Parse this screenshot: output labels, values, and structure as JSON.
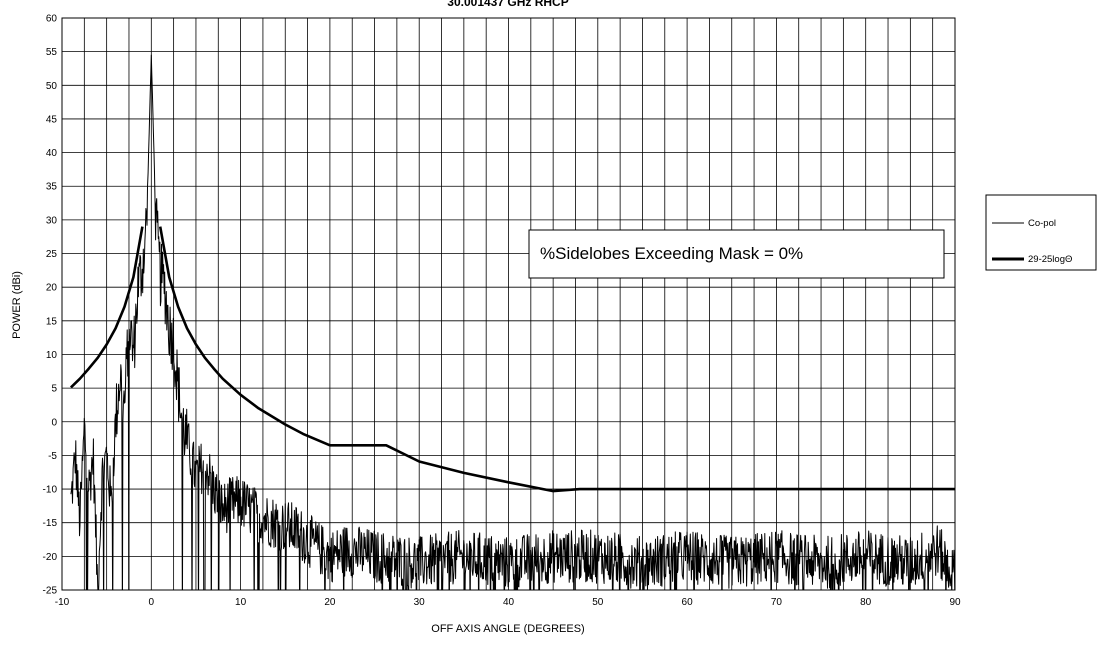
{
  "chart_data": {
    "type": "line",
    "title": "30.001437 GHz RHCP",
    "xlabel": "OFF AXIS ANGLE (DEGREES)",
    "ylabel": "POWER (dBi)",
    "xlim": [
      -10,
      90
    ],
    "ylim": [
      -25,
      60
    ],
    "xticks": [
      -10,
      0,
      10,
      20,
      30,
      40,
      50,
      60,
      70,
      80,
      90
    ],
    "yticks": [
      -25,
      -20,
      -15,
      -10,
      -5,
      0,
      5,
      10,
      15,
      20,
      25,
      30,
      35,
      40,
      45,
      50,
      55,
      60
    ],
    "x_gridlines_every": 2.5,
    "grid": true,
    "legend": "right",
    "annotation": "%Sidelobes Exceeding Mask = 0%",
    "series": [
      {
        "name": "Co-pol",
        "x": [
          -9,
          -8.5,
          -8,
          -7.5,
          -7,
          -6.5,
          -6,
          -5.5,
          -5,
          -4.5,
          -4,
          -3.5,
          -3,
          -2.5,
          -2,
          -1.5,
          -1,
          -0.5,
          -0.2,
          0,
          0.2,
          0.5,
          1,
          1.5,
          2,
          2.5,
          3,
          3.5,
          4,
          5,
          6,
          7,
          8,
          9,
          10,
          12,
          14,
          16,
          18,
          20,
          22,
          25,
          30,
          35,
          40,
          45,
          50,
          55,
          60,
          65,
          70,
          75,
          80,
          85,
          88,
          90
        ],
        "y": [
          -12,
          -5,
          -15,
          -1,
          -10,
          -5,
          -25,
          -8,
          -5,
          -12,
          0,
          7,
          2,
          15,
          10,
          20,
          23,
          30,
          45,
          54.5,
          45,
          30,
          22,
          20,
          14,
          12,
          5,
          0,
          -3,
          -8,
          -6,
          -10,
          -13,
          -12,
          -12,
          -14,
          -15,
          -16,
          -18,
          -20,
          -19,
          -20,
          -21,
          -20,
          -21,
          -20,
          -20,
          -21,
          -20,
          -21,
          -20,
          -21,
          -20,
          -21,
          -19,
          -23
        ]
      },
      {
        "name": "29-25logΘ",
        "x": [
          -9,
          -8,
          -7,
          -6,
          -5,
          -4,
          -3,
          -2,
          -1,
          1,
          2,
          3,
          4,
          5,
          6,
          7,
          8,
          10,
          12,
          15,
          17,
          20,
          26.3,
          30,
          35,
          40,
          45,
          48,
          60,
          70,
          80,
          90
        ],
        "y": [
          5.1,
          6.4,
          7.9,
          9.5,
          11.5,
          13.9,
          17.1,
          21.5,
          29,
          29,
          21.5,
          17.1,
          13.9,
          11.5,
          9.5,
          7.9,
          6.4,
          4,
          2,
          -0.4,
          -1.8,
          -3.5,
          -3.5,
          -5.9,
          -7.6,
          -9,
          -10.3,
          -10,
          -10,
          -10,
          -10,
          -10
        ]
      }
    ]
  },
  "colors": {
    "line": "#000000",
    "grid": "#000000",
    "background": "#ffffff"
  }
}
